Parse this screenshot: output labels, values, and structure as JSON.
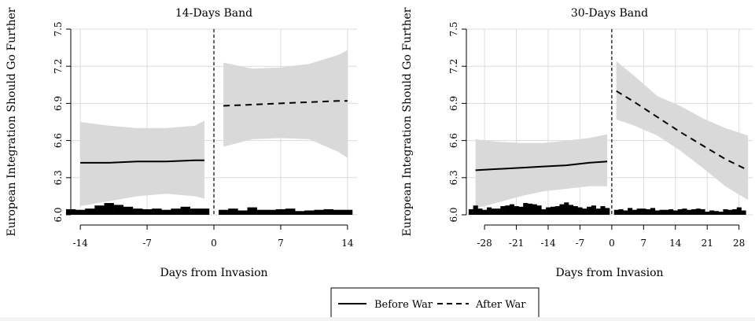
{
  "legend": {
    "before_label": "Before War",
    "after_label": "After War"
  },
  "chart_data": [
    {
      "type": "line",
      "title": "14-Days Band",
      "xlabel": "Days from Invasion",
      "ylabel": "European Integration Should Go Further",
      "xlim": [
        -15,
        15
      ],
      "ylim": [
        6.0,
        7.5
      ],
      "xticks": [
        -14,
        -7,
        0,
        7,
        14
      ],
      "yticks": [
        6.0,
        6.3,
        6.6,
        6.9,
        7.2,
        7.5
      ],
      "ytick_labels": [
        "6.0",
        "6.3",
        "6.6",
        "6.9",
        "7.2",
        "7.5"
      ],
      "grid": true,
      "cutoff": 0,
      "series": [
        {
          "name": "Before War",
          "style": "solid",
          "x": [
            -14,
            -11,
            -8,
            -5,
            -2,
            -1
          ],
          "y": [
            6.42,
            6.42,
            6.43,
            6.43,
            6.44,
            6.44
          ],
          "ci_lower": [
            6.07,
            6.11,
            6.15,
            6.17,
            6.15,
            6.13
          ],
          "ci_upper": [
            6.75,
            6.72,
            6.7,
            6.7,
            6.72,
            6.76
          ]
        },
        {
          "name": "After War",
          "style": "dashed",
          "x": [
            1,
            4,
            7,
            10,
            13,
            14
          ],
          "y": [
            6.88,
            6.89,
            6.9,
            6.91,
            6.92,
            6.92
          ],
          "ci_lower": [
            6.55,
            6.61,
            6.62,
            6.61,
            6.51,
            6.46
          ],
          "ci_upper": [
            7.23,
            7.18,
            7.19,
            7.22,
            7.29,
            7.33
          ]
        }
      ],
      "histogram": {
        "x": [
          -15,
          -14,
          -13,
          -12,
          -11,
          -10,
          -9,
          -8,
          -7,
          -6,
          -5,
          -4,
          -3,
          -2,
          -1,
          1,
          2,
          3,
          4,
          5,
          6,
          7,
          8,
          9,
          10,
          11,
          12,
          13,
          14
        ],
        "height": [
          0.045,
          0.04,
          0.05,
          0.075,
          0.095,
          0.08,
          0.065,
          0.05,
          0.045,
          0.05,
          0.04,
          0.05,
          0.065,
          0.05,
          0.05,
          0.04,
          0.05,
          0.035,
          0.06,
          0.04,
          0.04,
          0.045,
          0.05,
          0.03,
          0.035,
          0.04,
          0.045,
          0.04,
          0.04
        ]
      }
    },
    {
      "type": "line",
      "title": "30-Days Band",
      "xlabel": "Days from Invasion",
      "ylabel": "European Integration Should Go Further",
      "xlim": [
        -32,
        31
      ],
      "ylim": [
        6.0,
        7.5
      ],
      "xticks": [
        -28,
        -21,
        -14,
        -7,
        0,
        7,
        14,
        21,
        28
      ],
      "yticks": [
        6.0,
        6.3,
        6.6,
        6.9,
        7.2,
        7.5
      ],
      "ytick_labels": [
        "6.0",
        "6.3",
        "6.6",
        "6.9",
        "7.2",
        "7.5"
      ],
      "grid": true,
      "cutoff": 0,
      "series": [
        {
          "name": "Before War",
          "style": "solid",
          "x": [
            -30,
            -25,
            -20,
            -15,
            -10,
            -5,
            -1
          ],
          "y": [
            6.36,
            6.37,
            6.38,
            6.39,
            6.4,
            6.42,
            6.43
          ],
          "ci_lower": [
            6.05,
            6.1,
            6.15,
            6.19,
            6.21,
            6.23,
            6.23
          ],
          "ci_upper": [
            6.61,
            6.59,
            6.58,
            6.58,
            6.6,
            6.62,
            6.65
          ]
        },
        {
          "name": "After War",
          "style": "dashed",
          "x": [
            1,
            5,
            10,
            15,
            20,
            25,
            30
          ],
          "y": [
            7.0,
            6.91,
            6.79,
            6.67,
            6.56,
            6.45,
            6.36
          ],
          "ci_lower": [
            6.77,
            6.72,
            6.64,
            6.52,
            6.38,
            6.23,
            6.12
          ],
          "ci_upper": [
            7.24,
            7.12,
            6.96,
            6.88,
            6.78,
            6.7,
            6.64
          ]
        }
      ],
      "histogram": {
        "x": [
          -31,
          -30,
          -29,
          -28,
          -27,
          -26,
          -25,
          -24,
          -23,
          -22,
          -21,
          -20,
          -19,
          -18,
          -17,
          -16,
          -15,
          -14,
          -13,
          -12,
          -11,
          -10,
          -9,
          -8,
          -7,
          -6,
          -5,
          -4,
          -3,
          -2,
          -1,
          1,
          2,
          3,
          4,
          5,
          6,
          7,
          8,
          9,
          10,
          11,
          12,
          13,
          14,
          15,
          16,
          17,
          18,
          19,
          20,
          21,
          22,
          23,
          24,
          25,
          26,
          27,
          28,
          29
        ],
        "height": [
          0.045,
          0.075,
          0.05,
          0.04,
          0.06,
          0.05,
          0.05,
          0.07,
          0.075,
          0.085,
          0.07,
          0.065,
          0.095,
          0.09,
          0.085,
          0.075,
          0.045,
          0.06,
          0.065,
          0.07,
          0.085,
          0.1,
          0.08,
          0.07,
          0.06,
          0.05,
          0.065,
          0.075,
          0.05,
          0.07,
          0.055,
          0.04,
          0.045,
          0.035,
          0.055,
          0.04,
          0.05,
          0.05,
          0.045,
          0.055,
          0.035,
          0.04,
          0.04,
          0.045,
          0.035,
          0.045,
          0.05,
          0.04,
          0.045,
          0.05,
          0.045,
          0.025,
          0.035,
          0.03,
          0.025,
          0.045,
          0.04,
          0.045,
          0.06,
          0.035
        ]
      }
    }
  ]
}
